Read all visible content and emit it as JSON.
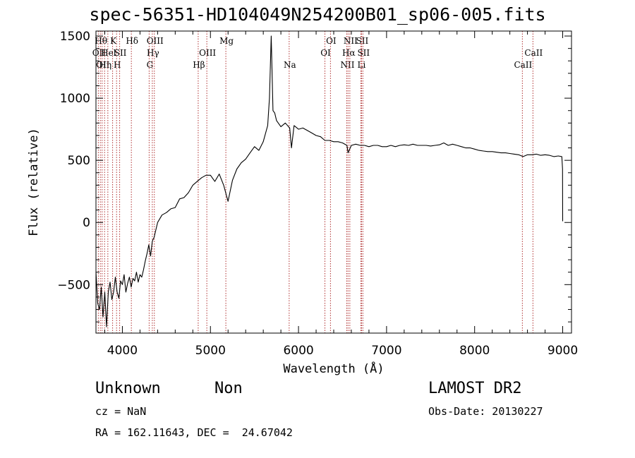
{
  "title": "spec-56351-HD104049N254200B01_sp06-005.fits",
  "chart_data": {
    "type": "line",
    "title": "spec-56351-HD104049N254200B01_sp06-005.fits",
    "xlabel": "Wavelength (Å)",
    "ylabel": "Flux (relative)",
    "xlim": [
      3700,
      9100
    ],
    "ylim": [
      -890,
      1540
    ],
    "x_ticks": [
      4000,
      5000,
      6000,
      7000,
      8000,
      9000
    ],
    "y_ticks": [
      -500,
      0,
      500,
      1000,
      1500
    ],
    "x_minor_step": 200,
    "y_minor_step": 100,
    "grid": false,
    "series": [
      {
        "points": [
          [
            3700,
            -400
          ],
          [
            3720,
            -650
          ],
          [
            3740,
            -700
          ],
          [
            3760,
            -520
          ],
          [
            3780,
            -760
          ],
          [
            3800,
            -560
          ],
          [
            3820,
            -840
          ],
          [
            3840,
            -560
          ],
          [
            3860,
            -480
          ],
          [
            3880,
            -620
          ],
          [
            3900,
            -560
          ],
          [
            3920,
            -440
          ],
          [
            3940,
            -560
          ],
          [
            3960,
            -610
          ],
          [
            3980,
            -470
          ],
          [
            4000,
            -500
          ],
          [
            4020,
            -420
          ],
          [
            4040,
            -560
          ],
          [
            4060,
            -490
          ],
          [
            4080,
            -440
          ],
          [
            4100,
            -520
          ],
          [
            4120,
            -450
          ],
          [
            4140,
            -470
          ],
          [
            4160,
            -400
          ],
          [
            4180,
            -480
          ],
          [
            4200,
            -420
          ],
          [
            4220,
            -440
          ],
          [
            4240,
            -380
          ],
          [
            4260,
            -310
          ],
          [
            4280,
            -250
          ],
          [
            4300,
            -180
          ],
          [
            4320,
            -270
          ],
          [
            4340,
            -150
          ],
          [
            4360,
            -120
          ],
          [
            4380,
            -60
          ],
          [
            4400,
            0
          ],
          [
            4450,
            60
          ],
          [
            4500,
            80
          ],
          [
            4550,
            110
          ],
          [
            4600,
            120
          ],
          [
            4650,
            190
          ],
          [
            4700,
            200
          ],
          [
            4750,
            240
          ],
          [
            4800,
            300
          ],
          [
            4850,
            330
          ],
          [
            4900,
            360
          ],
          [
            4950,
            380
          ],
          [
            5000,
            380
          ],
          [
            5050,
            330
          ],
          [
            5100,
            390
          ],
          [
            5150,
            300
          ],
          [
            5200,
            170
          ],
          [
            5250,
            340
          ],
          [
            5300,
            430
          ],
          [
            5350,
            480
          ],
          [
            5400,
            510
          ],
          [
            5450,
            560
          ],
          [
            5500,
            610
          ],
          [
            5550,
            580
          ],
          [
            5600,
            650
          ],
          [
            5650,
            780
          ],
          [
            5670,
            1000
          ],
          [
            5690,
            1500
          ],
          [
            5710,
            900
          ],
          [
            5730,
            880
          ],
          [
            5750,
            820
          ],
          [
            5800,
            770
          ],
          [
            5850,
            800
          ],
          [
            5900,
            760
          ],
          [
            5920,
            600
          ],
          [
            5950,
            780
          ],
          [
            6000,
            750
          ],
          [
            6050,
            760
          ],
          [
            6100,
            740
          ],
          [
            6150,
            720
          ],
          [
            6200,
            700
          ],
          [
            6250,
            690
          ],
          [
            6300,
            660
          ],
          [
            6350,
            660
          ],
          [
            6400,
            650
          ],
          [
            6450,
            650
          ],
          [
            6500,
            640
          ],
          [
            6550,
            620
          ],
          [
            6563,
            560
          ],
          [
            6600,
            620
          ],
          [
            6650,
            630
          ],
          [
            6700,
            620
          ],
          [
            6750,
            620
          ],
          [
            6800,
            610
          ],
          [
            6850,
            620
          ],
          [
            6900,
            620
          ],
          [
            6950,
            610
          ],
          [
            7000,
            610
          ],
          [
            7050,
            620
          ],
          [
            7100,
            610
          ],
          [
            7150,
            620
          ],
          [
            7200,
            625
          ],
          [
            7250,
            620
          ],
          [
            7300,
            630
          ],
          [
            7350,
            620
          ],
          [
            7400,
            620
          ],
          [
            7450,
            620
          ],
          [
            7500,
            615
          ],
          [
            7550,
            620
          ],
          [
            7600,
            625
          ],
          [
            7650,
            640
          ],
          [
            7700,
            620
          ],
          [
            7750,
            630
          ],
          [
            7800,
            620
          ],
          [
            7850,
            610
          ],
          [
            7900,
            600
          ],
          [
            7950,
            600
          ],
          [
            8000,
            590
          ],
          [
            8050,
            580
          ],
          [
            8100,
            575
          ],
          [
            8150,
            570
          ],
          [
            8200,
            570
          ],
          [
            8250,
            565
          ],
          [
            8300,
            560
          ],
          [
            8350,
            560
          ],
          [
            8400,
            555
          ],
          [
            8450,
            550
          ],
          [
            8500,
            545
          ],
          [
            8550,
            530
          ],
          [
            8600,
            545
          ],
          [
            8650,
            545
          ],
          [
            8700,
            550
          ],
          [
            8750,
            540
          ],
          [
            8800,
            545
          ],
          [
            8850,
            540
          ],
          [
            8900,
            530
          ],
          [
            8950,
            535
          ],
          [
            8990,
            530
          ],
          [
            8998,
            430
          ],
          [
            9000,
            10
          ]
        ]
      }
    ],
    "lines": [
      {
        "x": 3727,
        "label": "OII",
        "row": 1
      },
      {
        "x": 3750,
        "label": "Hθ",
        "row": 0
      },
      {
        "x": 3770,
        "label": "OII",
        "row": 2
      },
      {
        "x": 3798,
        "label": "Hη",
        "row": 2
      },
      {
        "x": 3835,
        "label": "Hel",
        "row": 1
      },
      {
        "x": 3889,
        "label": "K",
        "row": 0
      },
      {
        "x": 3934,
        "label": "H",
        "row": 2
      },
      {
        "x": 3969,
        "label": "SII",
        "row": 1
      },
      {
        "x": 4102,
        "label": "Hδ",
        "row": 0
      },
      {
        "x": 4304,
        "label": "G",
        "row": 2
      },
      {
        "x": 4340,
        "label": "Hγ",
        "row": 1
      },
      {
        "x": 4363,
        "label": "OIII",
        "row": 0
      },
      {
        "x": 4861,
        "label": "Hβ",
        "row": 2
      },
      {
        "x": 4959,
        "label": "OIII",
        "row": 1
      },
      {
        "x": 5175,
        "label": "Mg",
        "row": 0
      },
      {
        "x": 5894,
        "label": "Na",
        "row": 2
      },
      {
        "x": 6300,
        "label": "OI",
        "row": 1
      },
      {
        "x": 6363,
        "label": "OI",
        "row": 0
      },
      {
        "x": 6548,
        "label": "NII",
        "row": 2
      },
      {
        "x": 6563,
        "label": "Hα",
        "row": 1
      },
      {
        "x": 6583,
        "label": "NII",
        "row": 0
      },
      {
        "x": 6708,
        "label": "Li",
        "row": 2
      },
      {
        "x": 6716,
        "label": "SII",
        "row": 0
      },
      {
        "x": 6731,
        "label": "SII",
        "row": 1
      },
      {
        "x": 8542,
        "label": "CaII",
        "row": 2
      },
      {
        "x": 8662,
        "label": "CaII",
        "row": 1
      }
    ]
  },
  "footer": {
    "class_label": "Unknown",
    "subclass_label": "Non",
    "survey": "LAMOST DR2",
    "cz": "cz = NaN",
    "obs_date": "Obs-Date: 20130227",
    "radec": "RA = 162.11643, DEC =  24.67042"
  },
  "colors": {
    "spectrum": "#000000",
    "line_marker": "#b03030",
    "axes": "#000000"
  }
}
